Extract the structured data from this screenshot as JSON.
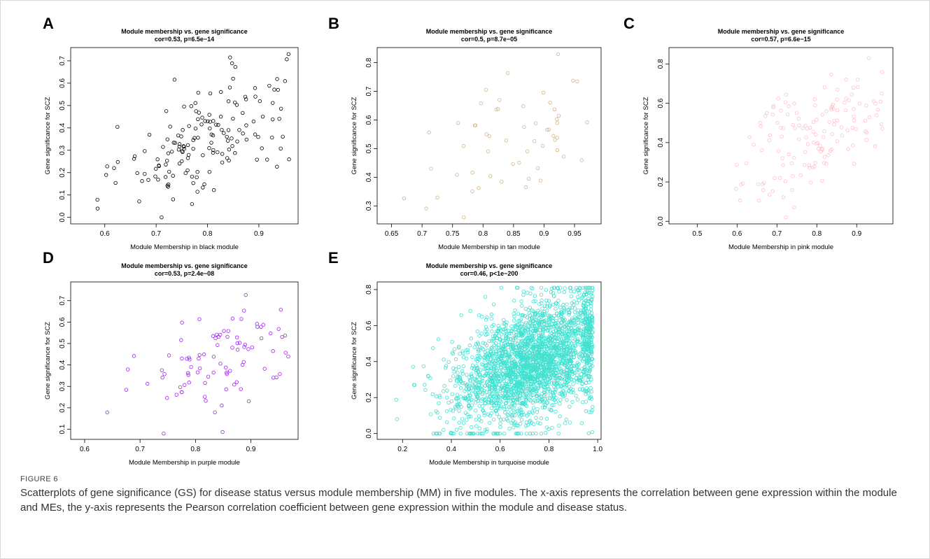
{
  "figure": {
    "label": "FIGURE 6",
    "caption": "Scatterplots of gene significance (GS) for disease status versus module membership (MM) in five modules. The x-axis represents the correlation between gene expression within the module and MEs, the y-axis represents the Pearson correlation coefficient between gene expression within the module and disease status."
  },
  "chart_data": [
    {
      "panel": "A",
      "type": "scatter",
      "title": "Module membership vs. gene significance",
      "subtitle": "cor=0.53, p=6.5e−14",
      "xlabel": "Module Membership in black module",
      "ylabel": "Gene significance for SCZ",
      "color": "#000000",
      "xlim": [
        0.55,
        0.96
      ],
      "ylim": [
        0.0,
        0.73
      ],
      "xticks": [
        0.6,
        0.7,
        0.8,
        0.9
      ],
      "yticks": [
        0.0,
        0.1,
        0.2,
        0.3,
        0.4,
        0.5,
        0.6,
        0.7
      ],
      "points": {
        "n": 160,
        "seed": 11,
        "xmean": 0.8,
        "xsd": 0.085,
        "slope": 0.9,
        "noise": 0.13
      }
    },
    {
      "panel": "B",
      "type": "scatter",
      "title": "Module membership vs. gene significance",
      "subtitle": "cor=0.5, p=8.7e−05",
      "xlabel": "Module Membership in tan module",
      "ylabel": "Gene significance for SCZ",
      "color": "#d2b48c",
      "xlim": [
        0.64,
        0.98
      ],
      "ylim": [
        0.26,
        0.83
      ],
      "xticks": [
        0.65,
        0.7,
        0.75,
        0.8,
        0.85,
        0.9,
        0.95
      ],
      "yticks": [
        0.3,
        0.4,
        0.5,
        0.6,
        0.7,
        0.8
      ],
      "points": {
        "n": 56,
        "seed": 23,
        "xmean": 0.86,
        "xsd": 0.07,
        "slope": 1.0,
        "noise": 0.11
      }
    },
    {
      "panel": "C",
      "type": "scatter",
      "title": "Module membership vs. gene significance",
      "subtitle": "cor=0.57, p=6.6e−15",
      "xlabel": "Module Membership in pink module",
      "ylabel": "Gene significance for SCZ",
      "color": "#ffc0cb",
      "xlim": [
        0.45,
        0.97
      ],
      "ylim": [
        0.02,
        0.85
      ],
      "xticks": [
        0.5,
        0.6,
        0.7,
        0.8,
        0.9
      ],
      "yticks": [
        0.0,
        0.2,
        0.4,
        0.6,
        0.8
      ],
      "points": {
        "n": 150,
        "seed": 37,
        "xmean": 0.79,
        "xsd": 0.09,
        "slope": 1.2,
        "noise": 0.14
      }
    },
    {
      "panel": "D",
      "type": "scatter",
      "title": "Module membership vs. gene significance",
      "subtitle": "cor=0.53, p=2.4e−08",
      "xlabel": "Module Membership in purple module",
      "ylabel": "Gene significance for SCZ",
      "color": "#a020f0",
      "xlim": [
        0.59,
        0.97
      ],
      "ylim": [
        0.08,
        0.76
      ],
      "xticks": [
        0.6,
        0.7,
        0.8,
        0.9
      ],
      "yticks": [
        0.1,
        0.2,
        0.3,
        0.4,
        0.5,
        0.6,
        0.7
      ],
      "points": {
        "n": 92,
        "seed": 53,
        "xmean": 0.84,
        "xsd": 0.075,
        "slope": 0.9,
        "noise": 0.12
      }
    },
    {
      "panel": "E",
      "type": "scatter",
      "title": "Module membership vs. gene significance",
      "subtitle": "cor=0.46, p<1e−200",
      "xlabel": "Module Membership in turquoise module",
      "ylabel": "Gene significance for SCZ",
      "color": "#40e0d0",
      "xlim": [
        0.13,
        0.98
      ],
      "ylim": [
        0.0,
        0.81
      ],
      "xticks": [
        0.2,
        0.4,
        0.6,
        0.8,
        1.0
      ],
      "yticks": [
        0.0,
        0.2,
        0.4,
        0.6,
        0.8
      ],
      "points": {
        "n": 2600,
        "seed": 71,
        "xmean": 0.74,
        "xsd": 0.16,
        "slope": 0.55,
        "noise": 0.16
      }
    }
  ]
}
